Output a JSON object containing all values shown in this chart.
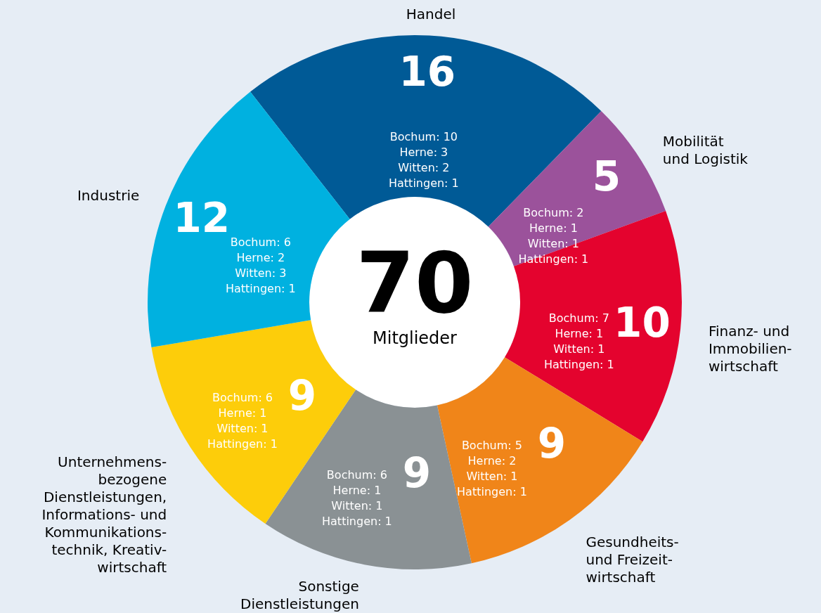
{
  "chart_data": {
    "type": "donut",
    "categories": [
      "Handel",
      "Mobilität\nund Logistik",
      "Finanz- und\nImmobilien-\nwirtschaft",
      "Gesundheits-\nund Freizeit-\nwirtschaft",
      "Sonstige\nDienstleistungen",
      "Unternehmens-\nbezogene\nDienstleistungen,\nInformations- und\nKommunikations-\ntechnik, Kreativ-\nwirtschaft",
      "Industrie"
    ],
    "values": [
      16,
      5,
      10,
      9,
      9,
      9,
      12
    ],
    "colors": [
      "#005a96",
      "#9b529b",
      "#e4032e",
      "#f08519",
      "#8a9194",
      "#fdcd0a",
      "#00b1e0"
    ],
    "data_labels": true,
    "annotations": [
      "70",
      "Mitglieder",
      "Bochum: 10\nHerne: 3\nWitten: 2\nHattingen: 1",
      "Bochum: 2\nHerne: 1\nWitten: 1\nHattingen: 1",
      "Bochum: 7\nHerne: 1\nWitten: 1\nHattingen: 1",
      "Bochum: 5\nHerne: 2\nWitten: 1\nHattingen: 1",
      "Bochum: 6\nHerne: 1\nWitten: 1\nHattingen: 1",
      "Bochum: 6\nHerne: 1\nWitten: 1\nHattingen: 1",
      "Bochum: 6\nHerne: 2\nWitten: 3\nHattingen: 1"
    ]
  }
}
